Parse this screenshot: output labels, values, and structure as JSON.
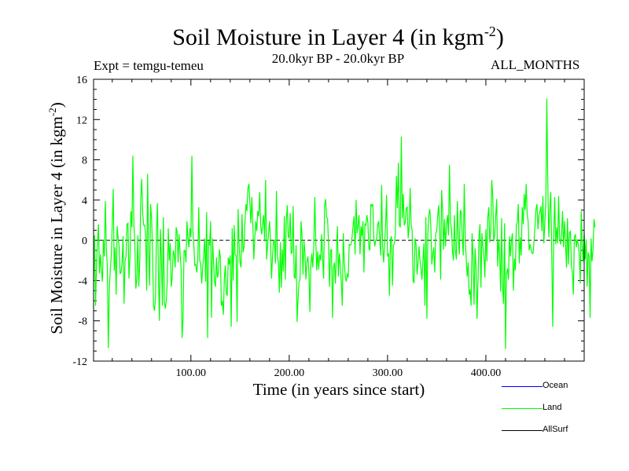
{
  "chart_data": {
    "type": "line",
    "title": "Soil Moisture in Layer 4 (in kgm",
    "title_exp": "-2",
    "title_close": ")",
    "subtitle_left": "Expt = temgu-temeu",
    "subtitle_center": "20.0kyr BP - 20.0kyr BP",
    "subtitle_right": "ALL_MONTHS",
    "xlabel": "Time (in years since start)",
    "ylabel": "Soil Moisture in Layer 4 (in kgm",
    "ylabel_exp": "-2",
    "ylabel_close": ")",
    "xlim": [
      1,
      500
    ],
    "ylim": [
      -12,
      16
    ],
    "xticks": [
      100,
      200,
      300,
      400
    ],
    "xtick_labels": [
      "100.00",
      "200.00",
      "300.00",
      "400.00"
    ],
    "yticks": [
      -12,
      -8,
      -4,
      0,
      4,
      8,
      12,
      16
    ],
    "ytick_labels": [
      "-12",
      "-8",
      "-4",
      "0",
      "4",
      "8",
      "12",
      "16"
    ],
    "zero_line": 0,
    "legend": [
      {
        "name": "Ocean",
        "color": "#0000ff"
      },
      {
        "name": "Land",
        "color": "#00ff00"
      },
      {
        "name": "AllSurf",
        "color": "#000000"
      }
    ],
    "series": [
      {
        "name": "Land",
        "color": "#00ff00",
        "x_start": 1,
        "x_step": 1,
        "values": [
          -4.1,
          0.5,
          -6.5,
          -2.5,
          -0.1,
          1.6,
          -3.3,
          -1.4,
          -3.0,
          -4.1,
          -0.0,
          -1.6,
          3.9,
          -0.8,
          -2.6,
          -10.7,
          -4.9,
          -2.9,
          -1.6,
          1.5,
          5.1,
          -3.0,
          -0.7,
          -5.4,
          1.4,
          0.2,
          -0.6,
          -3.3,
          -3.2,
          -2.2,
          0.4,
          -6.3,
          -2.1,
          -1.6,
          1.6,
          1.7,
          -3.8,
          -1.7,
          2.9,
          1.3,
          8.4,
          1.6,
          -0.4,
          -4.8,
          -3.8,
          0.5,
          -4.6,
          -2.0,
          4.1,
          6.1,
          2.6,
          1.5,
          1.5,
          0.5,
          -5.0,
          6.6,
          -1.0,
          -4.5,
          3.6,
          2.2,
          -1.2,
          -6.5,
          -7.0,
          -5.6,
          0.9,
          3.7,
          -3.7,
          -8.0,
          1.1,
          -1.8,
          -6.5,
          2.3,
          -6.1,
          -6.8,
          -5.9,
          -4.1,
          1.2,
          -2.0,
          -0.3,
          -4.6,
          -3.7,
          -1.0,
          -1.4,
          -2.7,
          1.3,
          0.8,
          -2.2,
          0.6,
          -1.3,
          -2.8,
          -9.7,
          -7.8,
          -1.0,
          -1.0,
          -2.2,
          1.9,
          0.1,
          -0.7,
          1.2,
          0.3,
          8.4,
          0.9,
          -0.5,
          -2.5,
          -2.4,
          -3.2,
          -2.0,
          3.3,
          -2.0,
          -2.4,
          -4.3,
          -2.7,
          -1.5,
          0.2,
          -4.1,
          2.8,
          -9.7,
          -0.1,
          -0.5,
          1.9,
          -7.7,
          0.2,
          -2.0,
          -4.1,
          -4.6,
          -1.7,
          -3.7,
          -3.3,
          -0.9,
          -1.7,
          -6.5,
          -6.0,
          -7.4,
          -3.8,
          -2.5,
          -5.3,
          -5.5,
          -1.7,
          -2.4,
          -1.5,
          -8.6,
          1.2,
          -4.0,
          1.5,
          -1.4,
          -1.5,
          -8.1,
          3.1,
          -0.3,
          -2.2,
          -2.7,
          2.6,
          -1.2,
          -0.7,
          1.9,
          3.6,
          2.9,
          5.2,
          5.6,
          3.7,
          1.7,
          4.3,
          1.6,
          -1.9,
          0.3,
          1.9,
          0.9,
          2.9,
          2.4,
          4.8,
          1.4,
          0.6,
          1.6,
          2.5,
          -0.1,
          6.0,
          -1.9,
          -0.5,
          0.7,
          1.9,
          -0.2,
          -3.8,
          -1.6,
          -0.1,
          -0.0,
          -2.3,
          4.9,
          -1.6,
          -2.2,
          -5.2,
          -0.2,
          -4.7,
          -0.9,
          -3.1,
          2.4,
          -3.9,
          1.9,
          3.5,
          0.4,
          0.2,
          2.7,
          -1.3,
          -1.2,
          3.4,
          -3.6,
          -3.8,
          -0.5,
          -8.1,
          -5.8,
          -4.1,
          -3.9,
          1.9,
          0.5,
          -3.4,
          -0.1,
          -1.2,
          -3.9,
          -2.1,
          -1.6,
          -3.1,
          -7.1,
          -2.5,
          -1.3,
          -2.7,
          -0.6,
          4.3,
          0.0,
          -3.0,
          -1.1,
          -2.9,
          -1.4,
          -2.0,
          0.6,
          -1.8,
          -3.8,
          3.5,
          4.1,
          2.3,
          2.2,
          -0.4,
          -4.6,
          -1.0,
          -0.9,
          -7.7,
          -2.7,
          -2.2,
          -4.3,
          -1.4,
          1.4,
          -3.6,
          -1.3,
          -2.6,
          -4.2,
          -6.5,
          0.7,
          -2.2,
          -3.6,
          -4.1,
          -3.3,
          -3.7,
          -0.4,
          -0.5,
          -0.4,
          0.4,
          1.5,
          2.4,
          -1.4,
          4.0,
          0.7,
          1.5,
          2.5,
          -1.4,
          1.4,
          0.4,
          1.9,
          -3.2,
          1.6,
          1.5,
          2.5,
          1.8,
          -0.8,
          -1.0,
          3.6,
          3.4,
          3.6,
          0.3,
          -0.6,
          0.0,
          0.2,
          1.6,
          1.9,
          0.2,
          -1.5,
          5.5,
          -0.6,
          -2.2,
          -0.4,
          1.5,
          4.5,
          -1.6,
          -1.3,
          -5.5,
          0.1,
          0.4,
          -4.5,
          -0.5,
          -0.3,
          0.8,
          6.4,
          3.2,
          7.7,
          1.5,
          1.3,
          10.3,
          2.2,
          4.6,
          1.5,
          1.8,
          3.2,
          3.3,
          0.2,
          1.5,
          5.2,
          1.5,
          1.0,
          -4.1,
          -4.2,
          0.2,
          -0.4,
          -3.4,
          -2.2,
          -0.6,
          -2.0,
          -2.8,
          -3.9,
          -2.0,
          -0.3,
          -6.5,
          2.3,
          -7.8,
          0.6,
          2.5,
          3.1,
          1.5,
          -2.4,
          -1.4,
          -0.7,
          -3.2,
          0.7,
          0.9,
          2.4,
          3.5,
          1.0,
          -3.9,
          5.0,
          3.0,
          -0.9,
          2.1,
          -0.6,
          1.6,
          2.5,
          0.5,
          7.5,
          1.8,
          1.2,
          -1.0,
          -2.0,
          2.5,
          -1.0,
          -1.9,
          3.9,
          0.2,
          -1.4,
          3.0,
          2.8,
          0.3,
          -1.5,
          5.6,
          0.4,
          -1.8,
          -3.6,
          -2.2,
          -5.4,
          -4.9,
          -6.5,
          0.7,
          -1.7,
          -6.4,
          -0.8,
          -2.6,
          -7.8,
          -4.0,
          0.3,
          1.6,
          -4.7,
          0.7,
          -0.7,
          -1.5,
          -3.7,
          1.1,
          -2.1,
          2.3,
          3.3,
          -0.2,
          0.9,
          6.0,
          4.4,
          -0.1,
          0.5,
          2.4,
          4.1,
          -2.6,
          0.1,
          -1.4,
          -5.1,
          2.2,
          -4.7,
          -6.3,
          1.7,
          -10.8,
          -3.3,
          -2.8,
          -3.9,
          0.4,
          -1.6,
          -0.0,
          0.7,
          -5.0,
          -1.8,
          -3.0,
          1.5,
          1.8,
          3.6,
          -2.3,
          0.3,
          -1.5,
          3.3,
          1.6,
          4.6,
          3.0,
          5.6,
          2.6,
          1.9,
          -1.0,
          -0.4,
          -0.9,
          -1.3,
          -1.3,
          -0.1,
          1.4,
          3.1,
          3.6,
          1.1,
          2.5,
          2.8,
          3.4,
          0.9,
          4.4,
          -0.3,
          1.8,
          3.7,
          14.1,
          5.6,
          0.3,
          3.0,
          4.8,
          -1.3,
          -8.6,
          0.3,
          4.3,
          -0.4,
          1.3,
          -0.3,
          4.4,
          0.2,
          -0.4,
          0.7,
          2.9,
          -0.7,
          1.9,
          -0.2,
          -2.7,
          2.2,
          -2.4,
          0.8,
          0.9,
          -2.6,
          -3.1,
          -5.4,
          0.3,
          0.6,
          -0.7,
          0.1,
          -0.4,
          -1.5,
          -4.3,
          2.9,
          -0.6,
          -2.1,
          0.7,
          -1.9,
          0.1,
          -4.6,
          -1.2,
          -1.6,
          -7.7,
          0.2,
          -2.1,
          -0.9,
          2.1,
          1.3
        ]
      }
    ]
  }
}
